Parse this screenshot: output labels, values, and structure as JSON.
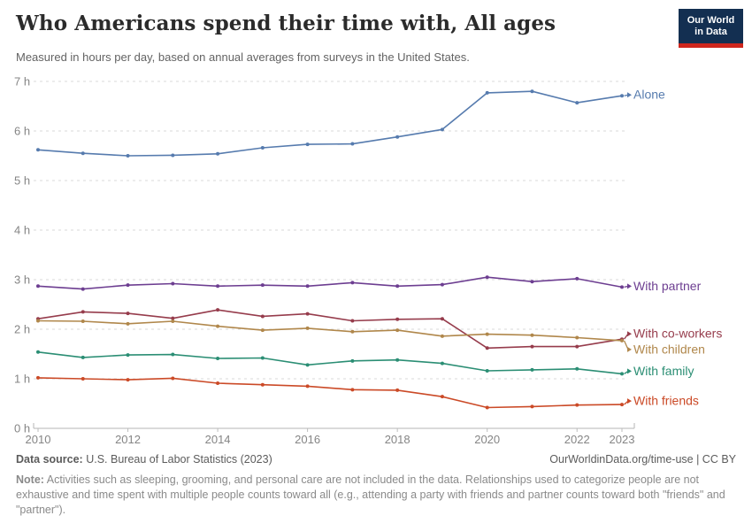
{
  "header": {
    "title": "Who Americans spend their time with, All ages",
    "subtitle": "Measured in hours per day, based on annual averages from surveys in the United States.",
    "logo": {
      "line1": "Our World",
      "line2": "in Data",
      "bg_color": "#132F51",
      "accent_color": "#CE261D"
    }
  },
  "chart_data": {
    "type": "line",
    "title": "Who Americans spend their time with, All ages",
    "xlabel": "",
    "ylabel": "hours per day",
    "ylim": [
      0,
      7
    ],
    "grid": "horizontal dashed",
    "legend_position": "right-of-line-endpoints",
    "x": [
      2010,
      2011,
      2012,
      2013,
      2014,
      2015,
      2016,
      2017,
      2018,
      2019,
      2020,
      2021,
      2022,
      2023
    ],
    "x_tick_years": [
      2010,
      2012,
      2014,
      2016,
      2018,
      2020,
      2022,
      2023
    ],
    "x_tick_labels": [
      "2010",
      "2012",
      "2014",
      "2016",
      "2018",
      "2020",
      "2022",
      "2023"
    ],
    "y_ticks": [
      {
        "value": 0,
        "label": "0 h"
      },
      {
        "value": 1,
        "label": "1 h"
      },
      {
        "value": 2,
        "label": "2 h"
      },
      {
        "value": 3,
        "label": "3 h"
      },
      {
        "value": 4,
        "label": "4 h"
      },
      {
        "value": 5,
        "label": "5 h"
      },
      {
        "value": 6,
        "label": "6 h"
      },
      {
        "value": 7,
        "label": "7 h"
      }
    ],
    "series": [
      {
        "name": "Alone",
        "color": "#567BAE",
        "label_dy": -1,
        "values": [
          5.62,
          5.55,
          5.5,
          5.51,
          5.54,
          5.66,
          5.73,
          5.74,
          5.88,
          6.03,
          6.77,
          6.8,
          6.57,
          6.71
        ]
      },
      {
        "name": "With partner",
        "color": "#6D3E91",
        "label_dy": -1,
        "values": [
          2.87,
          2.81,
          2.89,
          2.92,
          2.87,
          2.89,
          2.87,
          2.94,
          2.87,
          2.9,
          3.05,
          2.96,
          3.02,
          2.85
        ]
      },
      {
        "name": "With co-workers",
        "color": "#963C4C",
        "label_dy": -6,
        "values": [
          2.21,
          2.35,
          2.32,
          2.22,
          2.39,
          2.26,
          2.31,
          2.17,
          2.2,
          2.21,
          1.62,
          1.65,
          1.65,
          1.8
        ]
      },
      {
        "name": "With children",
        "color": "#B0874B",
        "label_dy": 10,
        "values": [
          2.17,
          2.16,
          2.11,
          2.16,
          2.06,
          1.98,
          2.02,
          1.95,
          1.98,
          1.86,
          1.9,
          1.88,
          1.83,
          1.77
        ]
      },
      {
        "name": "With family",
        "color": "#2B8E74",
        "label_dy": -3,
        "values": [
          1.54,
          1.43,
          1.48,
          1.49,
          1.41,
          1.42,
          1.28,
          1.36,
          1.38,
          1.31,
          1.16,
          1.18,
          1.2,
          1.1
        ]
      },
      {
        "name": "With friends",
        "color": "#CB4A27",
        "label_dy": -4,
        "values": [
          1.02,
          1.0,
          0.98,
          1.01,
          0.91,
          0.88,
          0.85,
          0.78,
          0.77,
          0.64,
          0.42,
          0.44,
          0.47,
          0.48
        ]
      }
    ]
  },
  "footer": {
    "source_label": "Data source:",
    "source_text": " U.S. Bureau of Labor Statistics (2023)",
    "credit": "OurWorldinData.org/time-use | CC BY",
    "note_label": "Note:",
    "note_text": " Activities such as sleeping, grooming, and personal care are not included in the data. Relationships used to categorize people are not exhaustive and time spent with multiple people counts toward all (e.g., attending a party with friends and partner counts toward both \"friends\" and \"partner\")."
  }
}
